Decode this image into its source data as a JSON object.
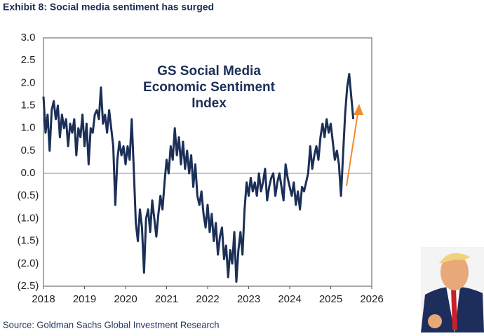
{
  "chart_data": {
    "type": "line",
    "title": "Exhibit 8: Social media sentiment has surged",
    "annotation": [
      "GS Social Media",
      "Economic Sentiment",
      "Index"
    ],
    "source": "Source: Goldman Sachs Global Investment Research",
    "color": "#1b2f57",
    "xlim": [
      2018,
      2026
    ],
    "xticks": [
      2018,
      2019,
      2020,
      2021,
      2022,
      2023,
      2024,
      2025,
      2026
    ],
    "ylim": [
      -2.5,
      3
    ],
    "yticks": [
      {
        "value": 3,
        "label": "3.0"
      },
      2.5,
      {
        "value": 2,
        "label": "2.0"
      },
      1.5,
      {
        "value": 1,
        "label": "1.0"
      },
      0.5,
      {
        "value": 0,
        "label": "0.0"
      },
      {
        "value": -0.5,
        "label": "(0.5)"
      },
      {
        "value": -1,
        "label": "(1.0)"
      },
      {
        "value": -1.5,
        "label": "(1.5)"
      },
      {
        "value": -2,
        "label": "(2.0)"
      },
      {
        "value": -2.5,
        "label": "(2.5)"
      }
    ],
    "x": [
      2018,
      2018.05,
      2018.1,
      2018.15,
      2018.2,
      2018.25,
      2018.3,
      2018.35,
      2018.4,
      2018.45,
      2018.5,
      2018.55,
      2018.6,
      2018.65,
      2018.7,
      2018.75,
      2018.8,
      2018.85,
      2018.9,
      2018.95,
      2019,
      2019.05,
      2019.1,
      2019.15,
      2019.2,
      2019.25,
      2019.3,
      2019.35,
      2019.4,
      2019.45,
      2019.5,
      2019.55,
      2019.6,
      2019.65,
      2019.7,
      2019.75,
      2019.8,
      2019.85,
      2019.9,
      2019.95,
      2020,
      2020.05,
      2020.1,
      2020.15,
      2020.2,
      2020.25,
      2020.3,
      2020.35,
      2020.4,
      2020.45,
      2020.5,
      2020.55,
      2020.6,
      2020.65,
      2020.7,
      2020.75,
      2020.8,
      2020.85,
      2020.9,
      2020.95,
      2021,
      2021.05,
      2021.1,
      2021.15,
      2021.2,
      2021.25,
      2021.3,
      2021.35,
      2021.4,
      2021.45,
      2021.5,
      2021.55,
      2021.6,
      2021.65,
      2021.7,
      2021.75,
      2021.8,
      2021.85,
      2021.9,
      2021.95,
      2022,
      2022.05,
      2022.1,
      2022.15,
      2022.2,
      2022.25,
      2022.3,
      2022.35,
      2022.4,
      2022.45,
      2022.5,
      2022.55,
      2022.6,
      2022.65,
      2022.7,
      2022.75,
      2022.8,
      2022.85,
      2022.9,
      2022.95,
      2023,
      2023.05,
      2023.1,
      2023.15,
      2023.2,
      2023.25,
      2023.3,
      2023.35,
      2023.4,
      2023.45,
      2023.5,
      2023.55,
      2023.6,
      2023.65,
      2023.7,
      2023.75,
      2023.8,
      2023.85,
      2023.9,
      2023.95,
      2024,
      2024.05,
      2024.1,
      2024.15,
      2024.2,
      2024.25,
      2024.3,
      2024.35,
      2024.4,
      2024.45,
      2024.5,
      2024.55,
      2024.6,
      2024.65,
      2024.7,
      2024.75,
      2024.8,
      2024.85,
      2024.9,
      2024.95,
      2025,
      2025.05,
      2025.1,
      2025.15,
      2025.2,
      2025.25,
      2025.3,
      2025.35,
      2025.4,
      2025.45,
      2025.5,
      2025.55
    ],
    "values": [
      1.7,
      0.9,
      1.3,
      0.5,
      1.4,
      1.6,
      1.2,
      1.5,
      0.8,
      1.3,
      1.0,
      1.2,
      0.6,
      1.1,
      0.9,
      1.2,
      0.4,
      1.0,
      0.8,
      1.3,
      0.6,
      1.1,
      0.2,
      1.0,
      0.9,
      1.3,
      1.4,
      1.2,
      1.9,
      1.1,
      1.3,
      0.9,
      1.4,
      1.0,
      0.6,
      -0.7,
      0.3,
      0.7,
      0.4,
      0.6,
      0.2,
      0.6,
      0.3,
      1.2,
      0.1,
      -1.1,
      -1.5,
      -0.8,
      -1.2,
      -2.2,
      -1.0,
      -0.8,
      -1.3,
      -0.6,
      -1.0,
      -1.4,
      -0.9,
      -0.5,
      -0.8,
      -0.2,
      0.3,
      0.0,
      0.6,
      0.3,
      1.0,
      0.4,
      0.8,
      0.2,
      0.7,
      0.1,
      0.5,
      0.0,
      0.4,
      -0.3,
      0.2,
      -0.5,
      -0.7,
      -0.4,
      -0.9,
      -1.2,
      -0.7,
      -1.3,
      -0.9,
      -1.5,
      -1.1,
      -1.8,
      -1.4,
      -1.2,
      -1.9,
      -1.6,
      -2.3,
      -1.7,
      -2.0,
      -1.3,
      -2.4,
      -1.7,
      -1.3,
      -1.8,
      -0.8,
      -0.2,
      -0.5,
      -0.1,
      -0.4,
      -0.2,
      -0.5,
      0.0,
      -0.4,
      -0.2,
      0.1,
      -0.6,
      -0.3,
      -0.1,
      0.0,
      -0.5,
      -0.2,
      0.0,
      -0.3,
      -0.6,
      0.2,
      -0.1,
      -0.3,
      -0.5,
      -0.2,
      -0.7,
      -0.4,
      -0.8,
      -0.3,
      -0.4,
      -0.2,
      0.0,
      0.6,
      0.1,
      0.4,
      0.6,
      0.3,
      0.8,
      1.1,
      0.8,
      1.2,
      0.9,
      1.1,
      0.7,
      0.3,
      0.5,
      0.2,
      -0.5,
      0.4,
      1.3,
      1.9,
      2.2,
      1.7,
      1.2
    ]
  }
}
